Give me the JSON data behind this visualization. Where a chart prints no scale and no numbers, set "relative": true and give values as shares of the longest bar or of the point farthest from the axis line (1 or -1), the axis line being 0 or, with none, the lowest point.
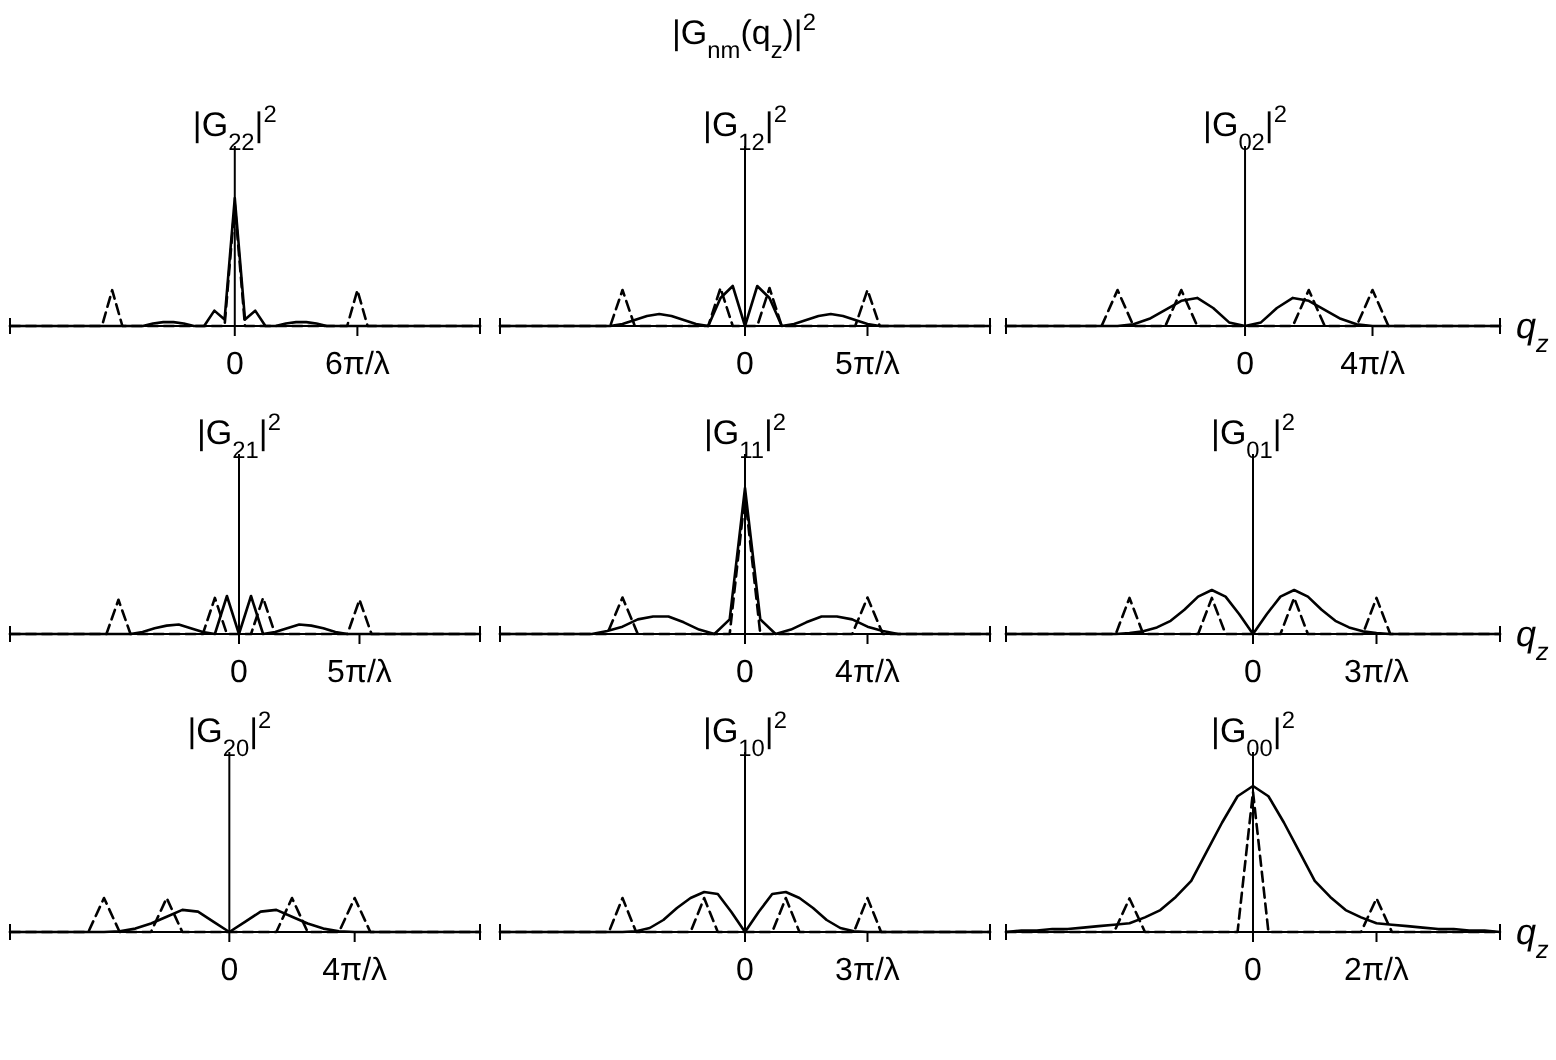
{
  "chart_data": [
    {
      "type": "other",
      "title": "|G$_{nm}$(q$_{z}$)|$^{2}$"
    },
    {
      "type": "line",
      "title": "|G$_{22}$|$^{2}$",
      "relative": true,
      "categories": [
        null,
        null,
        null,
        null,
        null,
        null,
        null,
        null,
        null,
        null,
        null,
        null,
        null,
        null,
        null,
        null,
        null,
        null,
        null,
        null,
        null,
        null,
        "0",
        null,
        null,
        null,
        null,
        null,
        null,
        null,
        null,
        null,
        null,
        null,
        "6π/λ",
        null,
        null,
        null,
        null,
        null,
        null,
        null,
        null,
        null,
        null,
        null,
        null
      ],
      "series": [
        {
          "color": "#000000",
          "line_style": "solid",
          "values": [
            0,
            0,
            0,
            0,
            0,
            0,
            0,
            0,
            0,
            0,
            0,
            0,
            0,
            0,
            0.02,
            0.03,
            0.03,
            0.02,
            0,
            0,
            0.12,
            0.05,
            1,
            0.05,
            0.12,
            0,
            0,
            0.02,
            0.03,
            0.03,
            0.02,
            0,
            0,
            0,
            0,
            0,
            0,
            0,
            0,
            0,
            0,
            0,
            0,
            0,
            0,
            0,
            0
          ]
        },
        {
          "color": "#000000",
          "line_style": "dashed",
          "values": [
            0,
            0,
            0,
            0,
            0,
            0,
            0,
            0,
            0,
            0,
            0.28,
            0,
            0,
            0,
            0,
            0,
            0,
            0,
            0,
            0,
            0,
            0,
            0.95,
            0,
            0,
            0,
            0,
            0,
            0,
            0,
            0,
            0,
            0,
            0,
            0.28,
            0,
            0,
            0,
            0,
            0,
            0,
            0,
            0,
            0,
            0,
            0,
            0
          ]
        }
      ]
    },
    {
      "type": "line",
      "title": "|G$_{12}$|$^{2}$",
      "relative": true,
      "categories": [
        null,
        null,
        null,
        null,
        null,
        null,
        null,
        null,
        null,
        null,
        null,
        null,
        null,
        null,
        null,
        null,
        null,
        null,
        null,
        null,
        "0",
        null,
        null,
        null,
        null,
        null,
        null,
        null,
        null,
        null,
        "5π/λ",
        null,
        null,
        null,
        null,
        null,
        null,
        null,
        null,
        null,
        null
      ],
      "series": [
        {
          "color": "#000000",
          "line_style": "solid",
          "values": [
            0,
            0,
            0,
            0,
            0,
            0,
            0,
            0,
            0,
            0,
            0.05,
            0.15,
            0.25,
            0.3,
            0.25,
            0.15,
            0.05,
            0,
            0.7,
            1,
            0,
            1,
            0.7,
            0,
            0.05,
            0.15,
            0.25,
            0.3,
            0.25,
            0.15,
            0.05,
            0,
            0,
            0,
            0,
            0,
            0,
            0,
            0,
            0,
            0
          ]
        },
        {
          "color": "#000000",
          "line_style": "dashed",
          "values": [
            0,
            0,
            0,
            0,
            0,
            0,
            0,
            0,
            0,
            0,
            0.9,
            0,
            0,
            0,
            0,
            0,
            0,
            0,
            0.95,
            0,
            0,
            0,
            0.95,
            0,
            0,
            0,
            0,
            0,
            0,
            0,
            0.9,
            0,
            0,
            0,
            0,
            0,
            0,
            0,
            0,
            0,
            0
          ]
        }
      ]
    },
    {
      "type": "line",
      "title": "|G$_{02}$|$^{2}$",
      "xlabel": "q$_{z}$",
      "relative": true,
      "categories": [
        null,
        null,
        null,
        null,
        null,
        null,
        null,
        null,
        null,
        null,
        null,
        null,
        null,
        null,
        null,
        "0",
        null,
        null,
        null,
        null,
        null,
        null,
        null,
        "4π/λ",
        null,
        null,
        null,
        null,
        null,
        null,
        null,
        null
      ],
      "series": [
        {
          "color": "#000000",
          "line_style": "solid",
          "values": [
            0,
            0,
            0,
            0,
            0,
            0,
            0,
            0,
            0.05,
            0.2,
            0.45,
            0.7,
            0.78,
            0.5,
            0.1,
            0,
            0.1,
            0.5,
            0.78,
            0.7,
            0.45,
            0.2,
            0.05,
            0,
            0,
            0,
            0,
            0,
            0,
            0,
            0,
            0
          ]
        },
        {
          "color": "#000000",
          "line_style": "dashed",
          "values": [
            0,
            0,
            0,
            0,
            0,
            0,
            0,
            1,
            0,
            0,
            0,
            1,
            0,
            0,
            0,
            0,
            0,
            0,
            0,
            1,
            0,
            0,
            0,
            1,
            0,
            0,
            0,
            0,
            0,
            0,
            0,
            0
          ]
        }
      ]
    },
    {
      "type": "line",
      "title": "|G$_{21}$|$^{2}$",
      "relative": true,
      "categories": [
        null,
        null,
        null,
        null,
        null,
        null,
        null,
        null,
        null,
        null,
        null,
        null,
        null,
        null,
        null,
        null,
        null,
        null,
        null,
        "0",
        null,
        null,
        null,
        null,
        null,
        null,
        null,
        null,
        null,
        "5π/λ",
        null,
        null,
        null,
        null,
        null,
        null,
        null,
        null,
        null,
        null
      ],
      "series": [
        {
          "color": "#000000",
          "line_style": "solid",
          "values": [
            0,
            0,
            0,
            0,
            0,
            0,
            0,
            0,
            0,
            0,
            0,
            0.05,
            0.15,
            0.22,
            0.25,
            0.15,
            0.05,
            0,
            1,
            0,
            1,
            0,
            0.05,
            0.15,
            0.25,
            0.22,
            0.15,
            0.05,
            0,
            0,
            0,
            0,
            0,
            0,
            0,
            0,
            0,
            0,
            0,
            0
          ]
        },
        {
          "color": "#000000",
          "line_style": "dashed",
          "values": [
            0,
            0,
            0,
            0,
            0,
            0,
            0,
            0,
            0,
            0.9,
            0,
            0,
            0,
            0,
            0,
            0,
            0,
            0.95,
            0,
            0,
            0,
            0.95,
            0,
            0,
            0,
            0,
            0,
            0,
            0,
            0.9,
            0,
            0,
            0,
            0,
            0,
            0,
            0,
            0,
            0,
            0
          ]
        }
      ]
    },
    {
      "type": "line",
      "title": "|G$_{11}$|$^{2}$",
      "relative": true,
      "categories": [
        null,
        null,
        null,
        null,
        null,
        null,
        null,
        null,
        null,
        null,
        null,
        null,
        null,
        null,
        null,
        null,
        "0",
        null,
        null,
        null,
        null,
        null,
        null,
        null,
        "4π/λ",
        null,
        null,
        null,
        null,
        null,
        null,
        null,
        null
      ],
      "series": [
        {
          "color": "#000000",
          "line_style": "solid",
          "values": [
            0,
            0,
            0,
            0,
            0,
            0,
            0,
            0.02,
            0.05,
            0.1,
            0.12,
            0.12,
            0.08,
            0.03,
            0,
            0.1,
            1,
            0.1,
            0,
            0.03,
            0.08,
            0.12,
            0.12,
            0.1,
            0.05,
            0.02,
            0,
            0,
            0,
            0,
            0,
            0,
            0
          ]
        },
        {
          "color": "#000000",
          "line_style": "dashed",
          "values": [
            0,
            0,
            0,
            0,
            0,
            0,
            0,
            0,
            0.25,
            0,
            0,
            0,
            0,
            0,
            0,
            0,
            0.95,
            0,
            0,
            0,
            0,
            0,
            0,
            0,
            0.25,
            0,
            0,
            0,
            0,
            0,
            0,
            0,
            0
          ]
        }
      ]
    },
    {
      "type": "line",
      "title": "|G$_{01}$|$^{2}$",
      "xlabel": "q$_{z}$",
      "relative": true,
      "categories": [
        null,
        null,
        null,
        null,
        null,
        null,
        null,
        null,
        null,
        null,
        null,
        null,
        null,
        null,
        null,
        null,
        null,
        null,
        "0",
        null,
        null,
        null,
        null,
        null,
        null,
        null,
        null,
        "3π/λ",
        null,
        null,
        null,
        null,
        null,
        null,
        null,
        null,
        null
      ],
      "series": [
        {
          "color": "#000000",
          "line_style": "solid",
          "values": [
            0,
            0,
            0,
            0,
            0,
            0,
            0,
            0,
            0,
            0.02,
            0.06,
            0.15,
            0.3,
            0.55,
            0.85,
            1,
            0.85,
            0.45,
            0,
            0.45,
            0.85,
            1,
            0.85,
            0.55,
            0.3,
            0.15,
            0.06,
            0.02,
            0,
            0,
            0,
            0,
            0,
            0,
            0,
            0,
            0
          ]
        },
        {
          "color": "#000000",
          "line_style": "dashed",
          "values": [
            0,
            0,
            0,
            0,
            0,
            0,
            0,
            0,
            0,
            0.82,
            0,
            0,
            0,
            0,
            0,
            0.82,
            0,
            0,
            0,
            0,
            0,
            0.82,
            0,
            0,
            0,
            0,
            0,
            0.82,
            0,
            0,
            0,
            0,
            0,
            0,
            0,
            0,
            0
          ]
        }
      ]
    },
    {
      "type": "line",
      "title": "|G$_{20}$|$^{2}$",
      "relative": true,
      "categories": [
        null,
        null,
        null,
        null,
        null,
        null,
        null,
        null,
        null,
        null,
        null,
        null,
        null,
        null,
        "0",
        null,
        null,
        null,
        null,
        null,
        null,
        null,
        "4π/λ",
        null,
        null,
        null,
        null,
        null,
        null,
        null,
        null
      ],
      "series": [
        {
          "color": "#000000",
          "line_style": "solid",
          "values": [
            0,
            0,
            0,
            0,
            0,
            0,
            0,
            0.02,
            0.1,
            0.25,
            0.45,
            0.65,
            0.6,
            0.3,
            0,
            0.3,
            0.6,
            0.65,
            0.45,
            0.25,
            0.1,
            0.02,
            0,
            0,
            0,
            0,
            0,
            0,
            0,
            0,
            0
          ]
        },
        {
          "color": "#000000",
          "line_style": "dashed",
          "values": [
            0,
            0,
            0,
            0,
            0,
            0,
            1,
            0,
            0,
            0,
            1,
            0,
            0,
            0,
            0,
            0,
            0,
            0,
            1,
            0,
            0,
            0,
            1,
            0,
            0,
            0,
            0,
            0,
            0,
            0,
            0
          ]
        }
      ]
    },
    {
      "type": "line",
      "title": "|G$_{10}$|$^{2}$",
      "relative": true,
      "categories": [
        null,
        null,
        null,
        null,
        null,
        null,
        null,
        null,
        null,
        null,
        null,
        null,
        null,
        null,
        null,
        null,
        null,
        null,
        "0",
        null,
        null,
        null,
        null,
        null,
        null,
        null,
        null,
        "3π/λ",
        null,
        null,
        null,
        null,
        null,
        null,
        null,
        null,
        null
      ],
      "series": [
        {
          "color": "#000000",
          "line_style": "solid",
          "values": [
            0,
            0,
            0,
            0,
            0,
            0,
            0,
            0,
            0,
            0,
            0.02,
            0.1,
            0.3,
            0.6,
            0.85,
            1,
            0.95,
            0.5,
            0,
            0.5,
            0.95,
            1,
            0.85,
            0.6,
            0.3,
            0.1,
            0.02,
            0,
            0,
            0,
            0,
            0,
            0,
            0,
            0,
            0,
            0
          ]
        },
        {
          "color": "#000000",
          "line_style": "dashed",
          "values": [
            0,
            0,
            0,
            0,
            0,
            0,
            0,
            0,
            0,
            0.85,
            0,
            0,
            0,
            0,
            0,
            0.85,
            0,
            0,
            0,
            0,
            0,
            0.85,
            0,
            0,
            0,
            0,
            0,
            0.85,
            0,
            0,
            0,
            0,
            0,
            0,
            0,
            0,
            0
          ]
        }
      ]
    },
    {
      "type": "line",
      "title": "|G$_{00}$|$^{2}$",
      "xlabel": "q$_{z}$",
      "relative": true,
      "categories": [
        null,
        null,
        null,
        null,
        null,
        null,
        null,
        null,
        null,
        null,
        null,
        null,
        null,
        null,
        null,
        null,
        "0",
        null,
        null,
        null,
        null,
        null,
        null,
        null,
        "2π/λ",
        null,
        null,
        null,
        null,
        null,
        null,
        null,
        null
      ],
      "series": [
        {
          "color": "#000000",
          "line_style": "solid",
          "values": [
            0,
            0.01,
            0.01,
            0.02,
            0.02,
            0.03,
            0.04,
            0.05,
            0.06,
            0.1,
            0.15,
            0.24,
            0.35,
            0.55,
            0.75,
            0.93,
            1,
            0.93,
            0.75,
            0.55,
            0.35,
            0.24,
            0.15,
            0.1,
            0.06,
            0.05,
            0.04,
            0.03,
            0.02,
            0.02,
            0.01,
            0.01,
            0
          ]
        },
        {
          "color": "#000000",
          "line_style": "dashed",
          "values": [
            0,
            0,
            0,
            0,
            0,
            0,
            0,
            0,
            0.23,
            0,
            0,
            0,
            0,
            0,
            0,
            0,
            0.96,
            0,
            0,
            0,
            0,
            0,
            0,
            0,
            0.23,
            0,
            0,
            0,
            0,
            0,
            0,
            0,
            0
          ]
        }
      ]
    }
  ]
}
